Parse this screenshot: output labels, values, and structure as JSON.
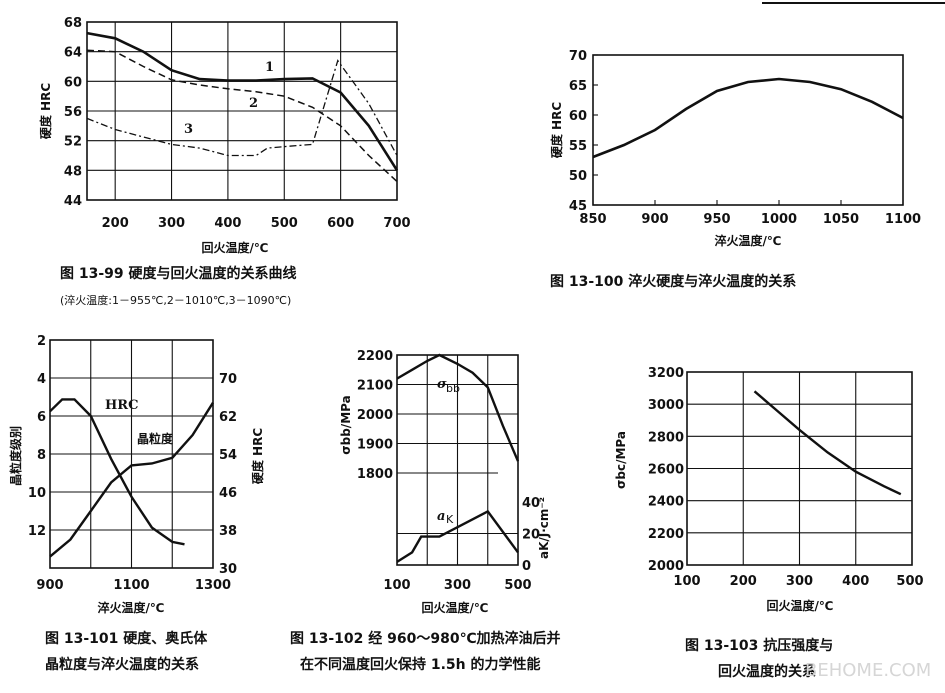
{
  "watermark": "BEHOME.COM",
  "chart_data": [
    {
      "id": "fig13_99",
      "type": "line",
      "caption": "图 13-99   硬度与回火温度的关系曲线",
      "subcaption": "(淬火温度:1－955℃,2－1010℃,3－1090℃)",
      "xlabel": "回火温度/℃",
      "ylabel": "硬度 HRC",
      "xlim": [
        150,
        700
      ],
      "ylim": [
        44,
        68
      ],
      "xticks": [
        "200",
        "300",
        "400",
        "500",
        "600",
        "700"
      ],
      "xtick_values": [
        200,
        300,
        400,
        500,
        600,
        700
      ],
      "yticks": [
        "68",
        "64",
        "60",
        "56",
        "52",
        "48",
        "44"
      ],
      "ytick_values": [
        68,
        64,
        60,
        56,
        52,
        48,
        44
      ],
      "grid": true,
      "series": [
        {
          "name": "1",
          "style": "solid",
          "x": [
            150,
            200,
            250,
            300,
            350,
            400,
            450,
            500,
            550,
            600,
            650,
            700
          ],
          "y": [
            66.5,
            65.8,
            64,
            61.5,
            60.3,
            60.1,
            60.1,
            60.3,
            60.4,
            58.5,
            54,
            48
          ]
        },
        {
          "name": "2",
          "style": "dashed",
          "x": [
            150,
            200,
            250,
            300,
            350,
            400,
            450,
            500,
            550,
            600,
            650,
            700
          ],
          "y": [
            64.2,
            64,
            62,
            60.2,
            59.5,
            59,
            58.6,
            58,
            56.5,
            54,
            50,
            46.5
          ]
        },
        {
          "name": "3",
          "style": "dashdot",
          "x": [
            150,
            200,
            250,
            300,
            350,
            400,
            450,
            470,
            500,
            550,
            595,
            650,
            700
          ],
          "y": [
            55,
            53.5,
            52.5,
            51.5,
            51,
            50,
            50,
            51,
            51.2,
            51.5,
            62.8,
            57,
            50
          ]
        }
      ]
    },
    {
      "id": "fig13_100",
      "type": "line",
      "caption": "图 13-100   淬火硬度与淬火温度的关系",
      "xlabel": "淬火温度/℃",
      "ylabel": "硬度 HRC",
      "xlim": [
        850,
        1100
      ],
      "ylim": [
        45,
        70
      ],
      "xticks": [
        "850",
        "900",
        "950",
        "1000",
        "1050",
        "1100"
      ],
      "xtick_values": [
        850,
        900,
        950,
        1000,
        1050,
        1100
      ],
      "yticks": [
        "70",
        "65",
        "60",
        "55",
        "50",
        "45"
      ],
      "ytick_values": [
        70,
        65,
        60,
        55,
        50,
        45
      ],
      "grid": false,
      "series": [
        {
          "name": "",
          "style": "solid",
          "x": [
            850,
            875,
            900,
            925,
            950,
            975,
            1000,
            1025,
            1050,
            1075,
            1100
          ],
          "y": [
            53,
            55,
            57.5,
            61,
            64,
            65.5,
            66,
            65.5,
            64.3,
            62.2,
            59.5
          ]
        }
      ]
    },
    {
      "id": "fig13_101",
      "type": "line",
      "caption_line1": "图 13-101   硬度、奥氏体",
      "caption_line2": "晶粒度与淬火温度的关系",
      "xlabel": "淬火温度/℃",
      "ylabel_left": "晶粒度级别",
      "ylabel_right": "硬度 HRC",
      "xlim": [
        900,
        1300
      ],
      "xticks": [
        "900",
        "1100",
        "1300"
      ],
      "xtick_values": [
        900,
        1100,
        1300
      ],
      "ylim_left": [
        14,
        2
      ],
      "yticks_left": [
        "2",
        "4",
        "6",
        "8",
        "10",
        "12"
      ],
      "ytick_values_left": [
        2,
        4,
        6,
        8,
        10,
        12
      ],
      "ylim_right": [
        30,
        78
      ],
      "yticks_right": [
        "70",
        "62",
        "54",
        "46",
        "38",
        "30"
      ],
      "ytick_values_right": [
        70,
        62,
        54,
        46,
        38,
        30
      ],
      "grid": true,
      "series": [
        {
          "name": "HRC",
          "axis": "right",
          "style": "solid",
          "x": [
            900,
            930,
            960,
            1000,
            1050,
            1100,
            1150,
            1200,
            1230
          ],
          "y": [
            63,
            65.5,
            65.5,
            62,
            53,
            45,
            38.5,
            35.5,
            35
          ]
        },
        {
          "name": "晶粒度",
          "axis": "left",
          "style": "solid",
          "x": [
            900,
            950,
            1000,
            1050,
            1100,
            1150,
            1200,
            1250,
            1300
          ],
          "y": [
            13.4,
            12.5,
            11,
            9.5,
            8.6,
            8.5,
            8.2,
            7,
            5.3
          ]
        }
      ]
    },
    {
      "id": "fig13_102",
      "type": "line",
      "caption_line1": "图 13-102   经 960～980℃加热淬油后并",
      "caption_line2": "在不同温度回火保持 1.5h 的力学性能",
      "xlabel": "回火温度/℃",
      "ylabel_left": "σbb/MPa",
      "ylabel_right": "aK/J·cm⁻²",
      "xlim": [
        100,
        500
      ],
      "xticks": [
        "100",
        "300",
        "500"
      ],
      "xtick_values": [
        100,
        300,
        500
      ],
      "ylim_left": [
        1800,
        2200
      ],
      "yticks_left": [
        "2200",
        "2100",
        "2000",
        "1900",
        "1800"
      ],
      "ytick_values_left": [
        2200,
        2100,
        2000,
        1900,
        1800
      ],
      "ylim_right": [
        0,
        40
      ],
      "yticks_right": [
        "40",
        "20",
        "0"
      ],
      "ytick_values_right": [
        40,
        20,
        0
      ],
      "grid": true,
      "series": [
        {
          "name": "σbb",
          "label_main": "σ",
          "label_sub": "bb",
          "axis": "left",
          "style": "solid",
          "x": [
            100,
            150,
            200,
            240,
            300,
            350,
            400,
            450,
            500
          ],
          "y": [
            2120,
            2150,
            2180,
            2200,
            2170,
            2140,
            2090,
            1960,
            1840
          ]
        },
        {
          "name": "aK",
          "label_main": "a",
          "label_sub": "K",
          "axis": "right",
          "style": "solid",
          "x": [
            100,
            150,
            180,
            240,
            300,
            400,
            500
          ],
          "y": [
            2,
            8,
            18,
            18,
            24,
            34,
            8
          ]
        }
      ]
    },
    {
      "id": "fig13_103",
      "type": "line",
      "caption_line1": "图 13-103   抗压强度与",
      "caption_line2": "回火温度的关系",
      "xlabel": "回火温度/℃",
      "ylabel": "σbc/MPa",
      "xlim": [
        100,
        500
      ],
      "ylim": [
        2000,
        3200
      ],
      "xticks": [
        "100",
        "200",
        "300",
        "400",
        "500"
      ],
      "xtick_values": [
        100,
        200,
        300,
        400,
        500
      ],
      "yticks": [
        "3200",
        "3000",
        "2800",
        "2600",
        "2400",
        "2200",
        "2000"
      ],
      "ytick_values": [
        3200,
        3000,
        2800,
        2600,
        2400,
        2200,
        2000
      ],
      "grid": true,
      "series": [
        {
          "name": "",
          "style": "solid",
          "x": [
            220,
            260,
            300,
            350,
            400,
            450,
            480
          ],
          "y": [
            3080,
            2960,
            2840,
            2700,
            2580,
            2490,
            2440
          ]
        }
      ]
    }
  ]
}
